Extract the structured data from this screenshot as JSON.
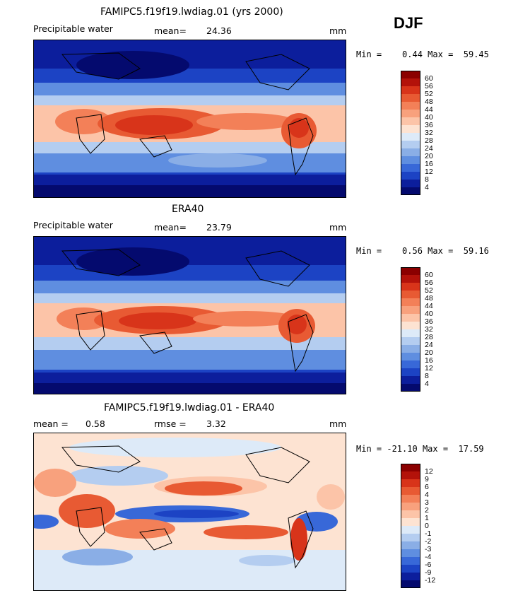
{
  "season": "DJF",
  "panels": [
    {
      "title": "FAMIPC5.f19f19.lwdiag.01 (yrs 2000)",
      "variable": "Precipitable water",
      "stat1_label": "mean=",
      "stat1_value": "24.36",
      "stat2_label": "",
      "stat2_value": "",
      "units": "mm",
      "min_label": "Min =",
      "min_value": "0.44",
      "max_label": "Max =",
      "max_value": "59.45"
    },
    {
      "title": "ERA40",
      "variable": "Precipitable water",
      "stat1_label": "mean=",
      "stat1_value": "23.79",
      "stat2_label": "",
      "stat2_value": "",
      "units": "mm",
      "min_label": "Min =",
      "min_value": "0.56",
      "max_label": "Max =",
      "max_value": "59.16"
    },
    {
      "title": "FAMIPC5.f19f19.lwdiag.01 - ERA40",
      "variable": "",
      "stat1_label": "mean =",
      "stat1_value": "0.58",
      "stat2_label": "rmse =",
      "stat2_value": "3.32",
      "units": "mm",
      "min_label": "Min =",
      "min_value": "-21.10",
      "max_label": "Max =",
      "max_value": "17.59"
    }
  ],
  "colorbars": {
    "absolute": {
      "labels": [
        "60",
        "56",
        "52",
        "48",
        "44",
        "40",
        "36",
        "32",
        "28",
        "24",
        "20",
        "16",
        "12",
        "8",
        "4"
      ],
      "colors": [
        "#8b0000",
        "#b3120a",
        "#d8341a",
        "#e85a33",
        "#f38058",
        "#f8a17d",
        "#fcc4a8",
        "#fde3d2",
        "#ddeaf8",
        "#b4cdf0",
        "#8aaee6",
        "#5f8ee0",
        "#3868d8",
        "#1c43c4",
        "#0c1e9c",
        "#040a6e"
      ]
    },
    "difference": {
      "labels": [
        "12",
        "9",
        "6",
        "4",
        "3",
        "2",
        "1",
        "0",
        "-1",
        "-2",
        "-3",
        "-4",
        "-6",
        "-9",
        "-12"
      ],
      "colors": [
        "#8b0000",
        "#b3120a",
        "#d8341a",
        "#e85a33",
        "#f38058",
        "#f8a17d",
        "#fcc4a8",
        "#fde3d2",
        "#ddeaf8",
        "#b4cdf0",
        "#8aaee6",
        "#5f8ee0",
        "#3868d8",
        "#1c43c4",
        "#0c1e9c",
        "#040a6e"
      ]
    }
  },
  "chart_data": [
    {
      "type": "heatmap",
      "title": "FAMIPC5.f19f19.lwdiag.01 (yrs 2000)",
      "variable": "Precipitable water",
      "units": "mm",
      "mean": 24.36,
      "min": 0.44,
      "max": 59.45,
      "contour_levels": [
        4,
        8,
        12,
        16,
        20,
        24,
        28,
        32,
        36,
        40,
        44,
        48,
        52,
        56,
        60
      ]
    },
    {
      "type": "heatmap",
      "title": "ERA40",
      "variable": "Precipitable water",
      "units": "mm",
      "mean": 23.79,
      "min": 0.56,
      "max": 59.16,
      "contour_levels": [
        4,
        8,
        12,
        16,
        20,
        24,
        28,
        32,
        36,
        40,
        44,
        48,
        52,
        56,
        60
      ]
    },
    {
      "type": "heatmap",
      "title": "FAMIPC5.f19f19.lwdiag.01 - ERA40",
      "units": "mm",
      "mean": 0.58,
      "rmse": 3.32,
      "min": -21.1,
      "max": 17.59,
      "contour_levels": [
        -12,
        -9,
        -6,
        -4,
        -3,
        -2,
        -1,
        0,
        1,
        2,
        3,
        4,
        6,
        9,
        12
      ]
    }
  ]
}
